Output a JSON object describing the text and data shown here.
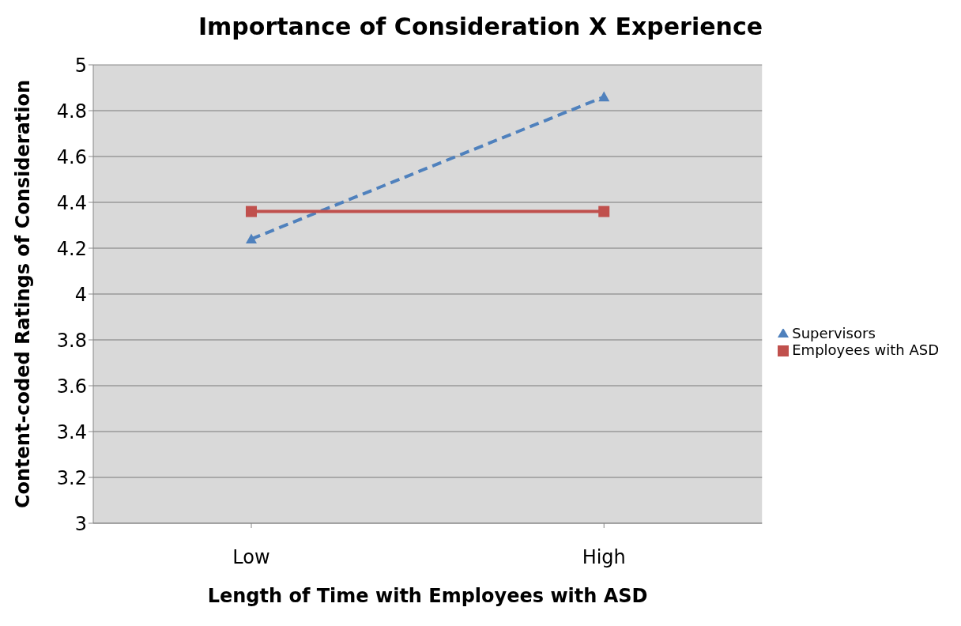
{
  "chart_data": {
    "type": "line",
    "title": "Importance of Consideration X Experience",
    "xlabel": "Length of Time with Employees with ASD",
    "ylabel": "Content-coded Ratings of Consideration",
    "categories": [
      "Low",
      "High"
    ],
    "series": [
      {
        "name": "Supervisors",
        "color": "#4f81bd",
        "values": [
          4.24,
          4.86
        ],
        "marker": "triangle",
        "line_style": "dashed"
      },
      {
        "name": "Employees with ASD",
        "color": "#c0504d",
        "values": [
          4.36,
          4.36
        ],
        "marker": "square",
        "line_style": "solid"
      }
    ],
    "ylim": [
      3,
      5
    ],
    "yticks": [
      3,
      3.2,
      3.4,
      3.6,
      3.8,
      4,
      4.2,
      4.4,
      4.6,
      4.8,
      5
    ],
    "grid": "y",
    "legend": "right"
  }
}
